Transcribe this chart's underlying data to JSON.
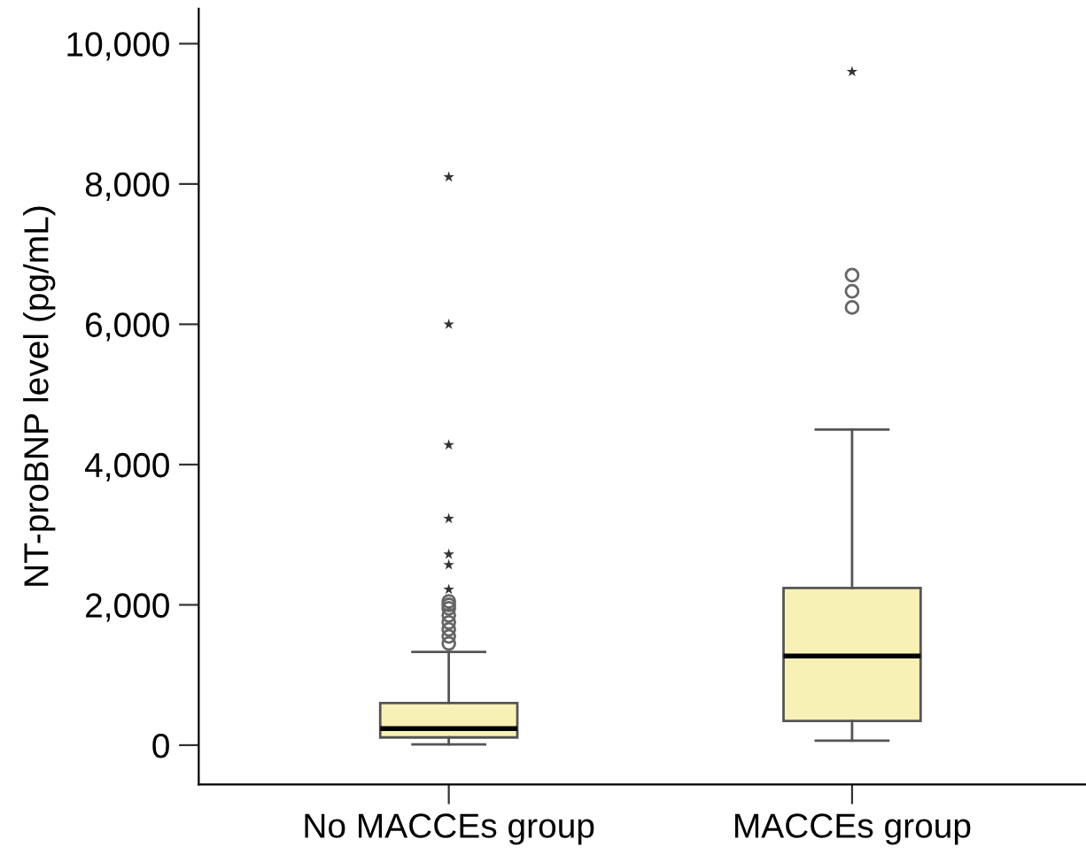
{
  "chart_data": {
    "type": "box",
    "ylabel": "NT-proBNP level (pg/mL)",
    "categories": [
      "No MACCEs group",
      "MACCEs group"
    ],
    "ylim": [
      -560,
      10500
    ],
    "yticks": [
      {
        "value": 0,
        "label": "0"
      },
      {
        "value": 2000,
        "label": "2,000"
      },
      {
        "value": 4000,
        "label": "4,000"
      },
      {
        "value": 6000,
        "label": "6,000"
      },
      {
        "value": 8000,
        "label": "8,000"
      },
      {
        "value": 10000,
        "label": "10,000"
      }
    ],
    "grid": false,
    "series": [
      {
        "color": "#f8f1b6",
        "boxes": [
          {
            "low": 10,
            "q1": 110,
            "median": 235,
            "q3": 600,
            "high": 1330,
            "outliers": [
              1450,
              1550,
              1650,
              1750,
              1850,
              1950,
              2000,
              2050
            ]
          },
          {
            "low": 65,
            "q1": 345,
            "median": 1270,
            "q3": 2240,
            "high": 4500,
            "outliers": [
              6240,
              6470,
              6700
            ]
          }
        ]
      },
      {
        "type": "scatter",
        "marker": "star",
        "color": "#333333",
        "x": [
          "No MACCEs group",
          "No MACCEs group",
          "No MACCEs group",
          "No MACCEs group",
          "No MACCEs group",
          "No MACCEs group",
          "No MACCEs group",
          "MACCEs group"
        ],
        "values": [
          2220,
          2570,
          2720,
          3230,
          4280,
          6000,
          8100,
          9600
        ]
      }
    ]
  }
}
